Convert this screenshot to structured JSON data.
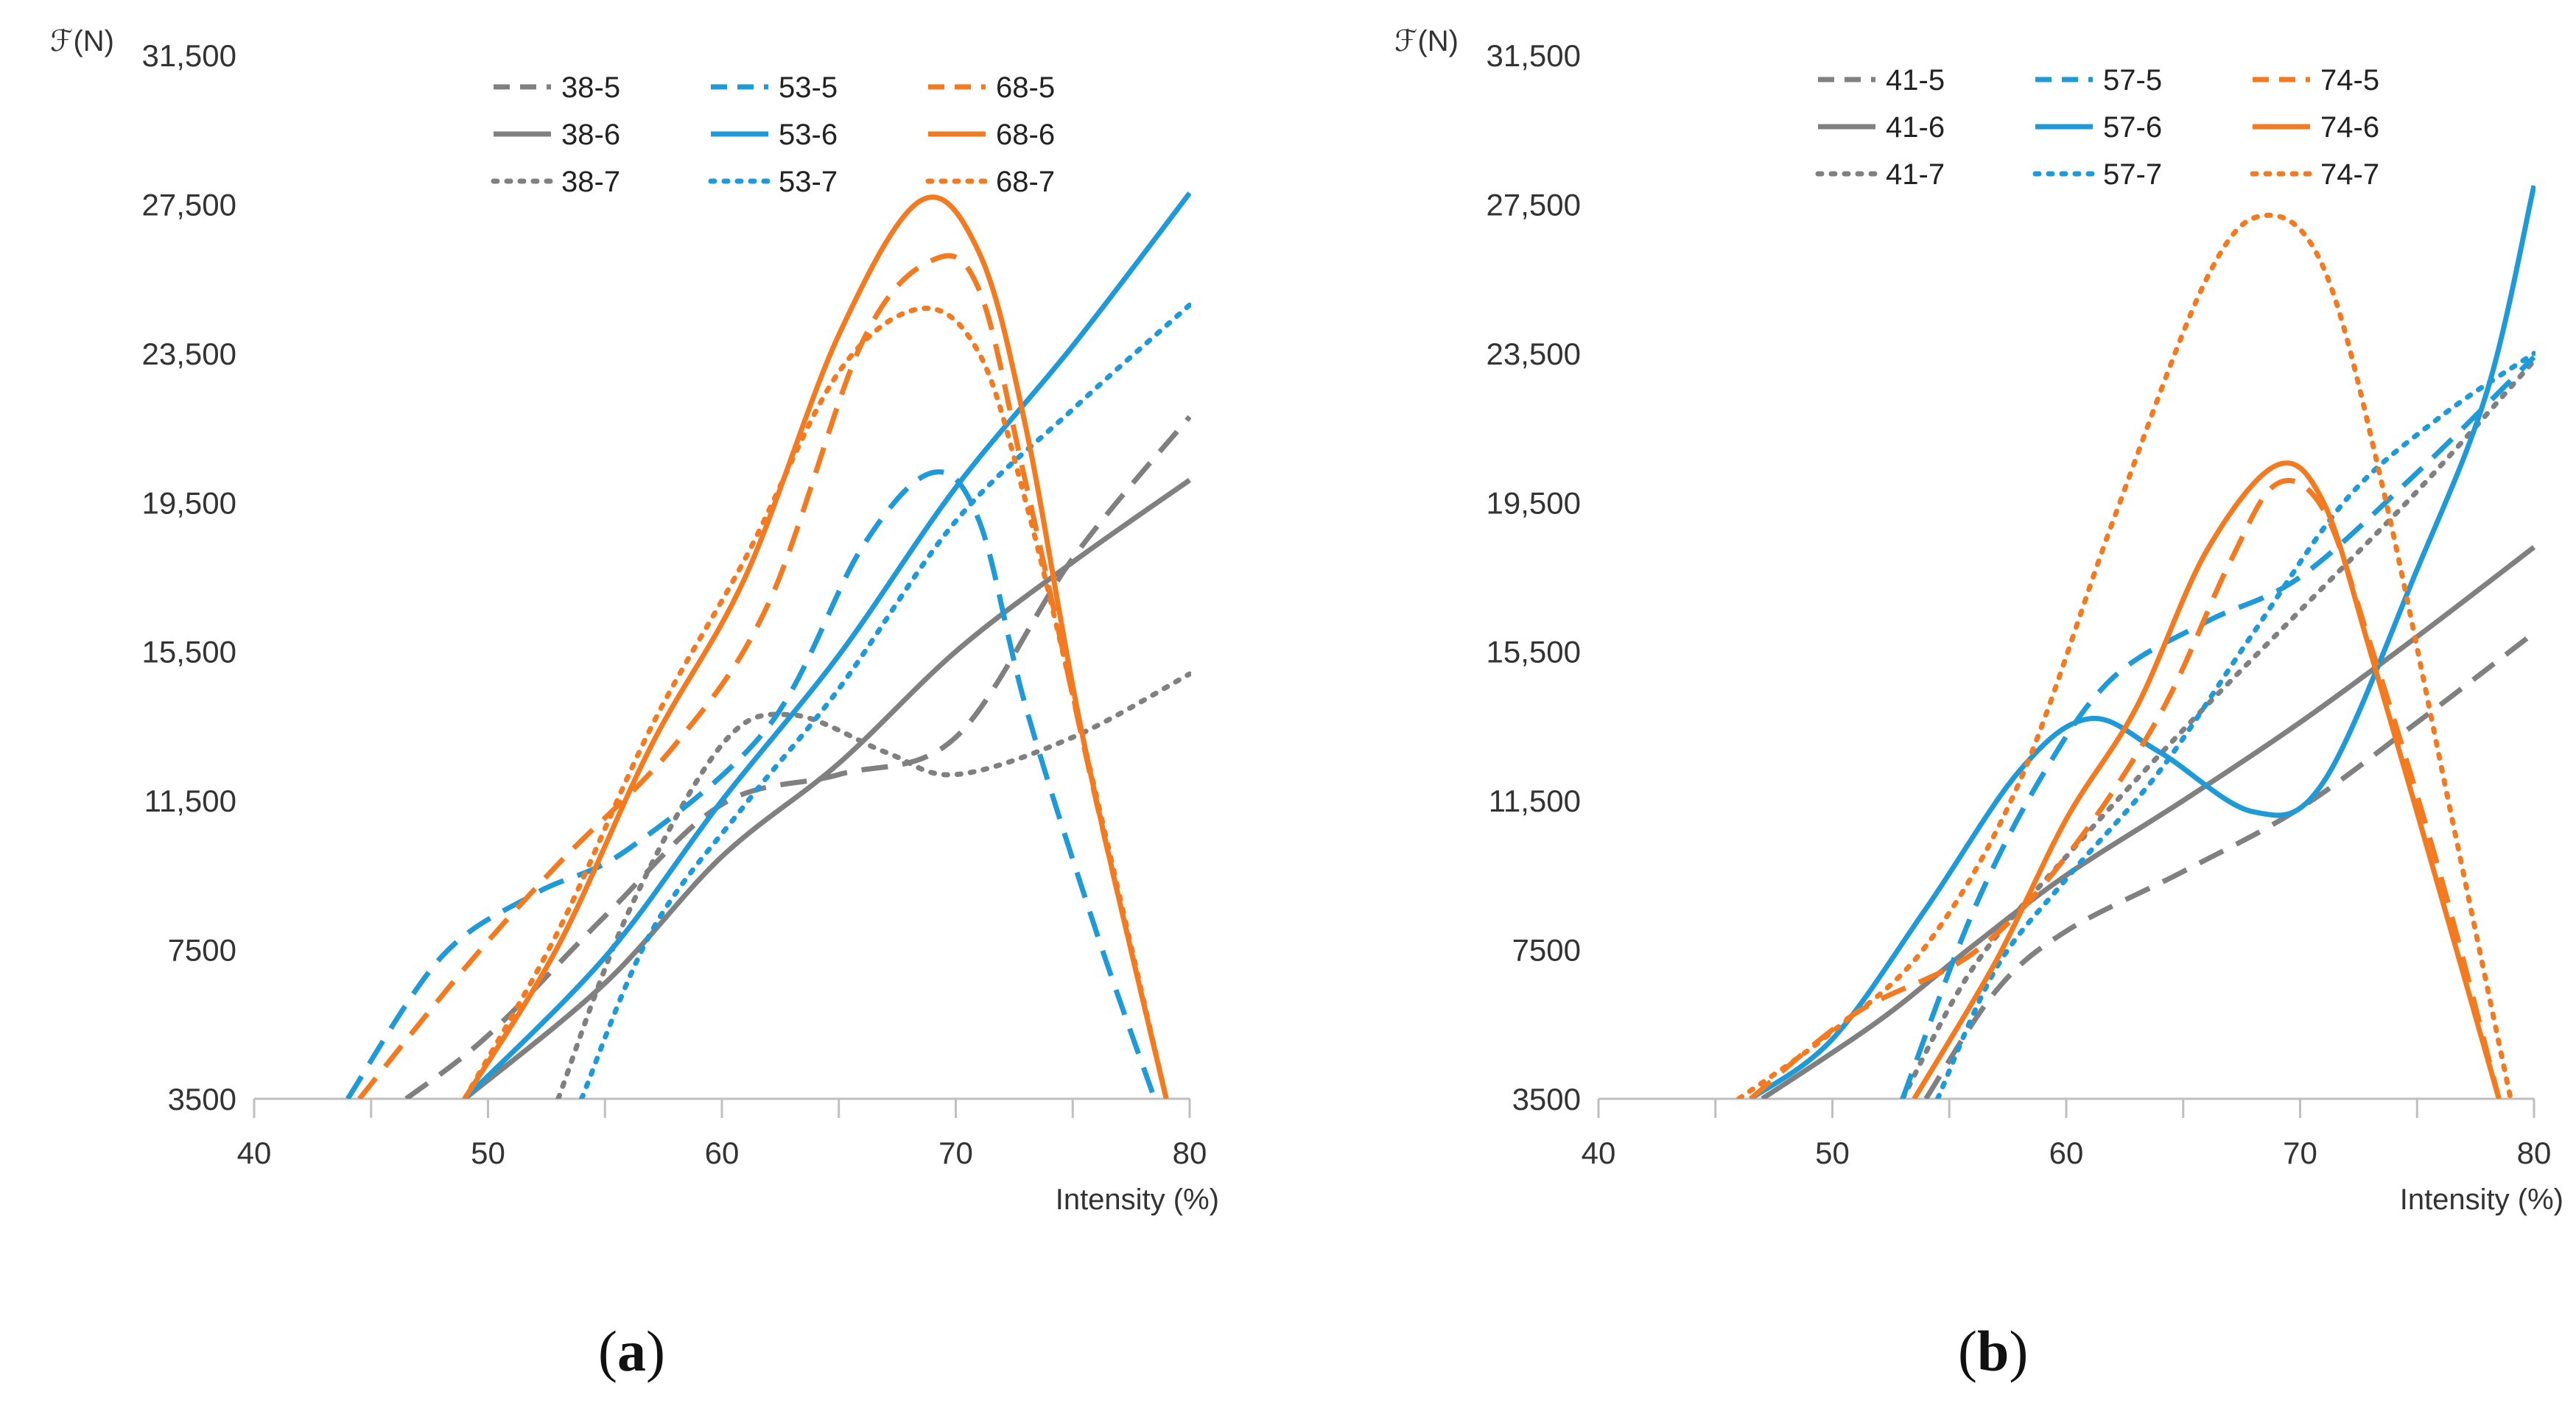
{
  "captions": {
    "a": "a",
    "b": "b"
  },
  "chart_data": [
    {
      "id": "a",
      "type": "line",
      "title": "",
      "xlabel": "Intensity (%)",
      "ylabel": "ℱ(N)",
      "xlim": [
        40,
        80
      ],
      "ylim": [
        3500,
        31500
      ],
      "xticks": [
        40,
        50,
        60,
        70,
        80
      ],
      "yticks": [
        3500,
        7500,
        11500,
        15500,
        19500,
        23500,
        27500,
        31500
      ],
      "ytick_labels": [
        "3500",
        "7500",
        "11,500",
        "15,500",
        "19,500",
        "23,500",
        "27,500",
        "31,500"
      ],
      "legend_position": "top-center",
      "series": [
        {
          "name": "38-5",
          "color": "#808080",
          "style": "dashed",
          "points": [
            [
              46.5,
              3500
            ],
            [
              50,
              5200
            ],
            [
              55,
              8400
            ],
            [
              60,
              11400
            ],
            [
              65,
              12200
            ],
            [
              70,
              13200
            ],
            [
              75,
              18000
            ],
            [
              80,
              21800
            ]
          ]
        },
        {
          "name": "38-6",
          "color": "#808080",
          "style": "solid",
          "points": [
            [
              49,
              3500
            ],
            [
              55,
              6600
            ],
            [
              60,
              10000
            ],
            [
              65,
              12500
            ],
            [
              70,
              15500
            ],
            [
              75,
              17900
            ],
            [
              80,
              20100
            ]
          ]
        },
        {
          "name": "38-7",
          "color": "#808080",
          "style": "dotted",
          "points": [
            [
              53,
              3500
            ],
            [
              56,
              8500
            ],
            [
              60,
              13000
            ],
            [
              63,
              13800
            ],
            [
              67,
              12800
            ],
            [
              70,
              12200
            ],
            [
              75,
              13200
            ],
            [
              80,
              14900
            ]
          ]
        },
        {
          "name": "53-5",
          "color": "#1f9ad8",
          "style": "dashed",
          "points": [
            [
              44,
              3500
            ],
            [
              48,
              7300
            ],
            [
              52,
              9000
            ],
            [
              56,
              10200
            ],
            [
              62,
              13500
            ],
            [
              66,
              18300
            ],
            [
              69,
              20300
            ],
            [
              71,
              19000
            ],
            [
              73,
              14000
            ],
            [
              76,
              8000
            ],
            [
              78.5,
              3500
            ]
          ]
        },
        {
          "name": "53-6",
          "color": "#1f9ad8",
          "style": "solid",
          "points": [
            [
              49,
              3500
            ],
            [
              55,
              7300
            ],
            [
              60,
              11500
            ],
            [
              65,
              15400
            ],
            [
              70,
              19900
            ],
            [
              75,
              23700
            ],
            [
              80,
              27800
            ]
          ]
        },
        {
          "name": "53-7",
          "color": "#1f9ad8",
          "style": "dotted",
          "points": [
            [
              54,
              3500
            ],
            [
              57,
              8000
            ],
            [
              61,
              11400
            ],
            [
              65,
              14500
            ],
            [
              70,
              19000
            ],
            [
              75,
              22000
            ],
            [
              80,
              24800
            ]
          ]
        },
        {
          "name": "68-5",
          "color": "#f47a20",
          "style": "dashed",
          "points": [
            [
              44.5,
              3500
            ],
            [
              49,
              7000
            ],
            [
              53,
              9800
            ],
            [
              58,
              13000
            ],
            [
              62,
              16800
            ],
            [
              66,
              23800
            ],
            [
              69,
              26000
            ],
            [
              71,
              25200
            ],
            [
              73,
              20000
            ],
            [
              76,
              11500
            ],
            [
              79,
              3500
            ]
          ]
        },
        {
          "name": "68-6",
          "color": "#f47a20",
          "style": "solid",
          "points": [
            [
              49,
              3500
            ],
            [
              53,
              7600
            ],
            [
              57,
              13000
            ],
            [
              61,
              17500
            ],
            [
              65,
              24000
            ],
            [
              68.5,
              27600
            ],
            [
              71,
              26200
            ],
            [
              73,
              21500
            ],
            [
              75.5,
              13000
            ],
            [
              79,
              3500
            ]
          ]
        },
        {
          "name": "68-7",
          "color": "#f47a20",
          "style": "dotted",
          "points": [
            [
              49,
              3500
            ],
            [
              53,
              8000
            ],
            [
              57,
              13500
            ],
            [
              61,
              18000
            ],
            [
              65,
              23000
            ],
            [
              68.5,
              24700
            ],
            [
              71,
              23500
            ],
            [
              73,
              19500
            ],
            [
              75.5,
              13000
            ],
            [
              79,
              3500
            ]
          ]
        }
      ]
    },
    {
      "id": "b",
      "type": "line",
      "title": "",
      "xlabel": "Intensity (%)",
      "ylabel": "ℱ(N)",
      "xlim": [
        40,
        80
      ],
      "ylim": [
        3500,
        31500
      ],
      "xticks": [
        40,
        50,
        60,
        70,
        80
      ],
      "yticks": [
        3500,
        7500,
        11500,
        15500,
        19500,
        23500,
        27500,
        31500
      ],
      "ytick_labels": [
        "3500",
        "7500",
        "11,500",
        "15,500",
        "19,500",
        "23,500",
        "27,500",
        "31,500"
      ],
      "legend_position": "top-center",
      "series": [
        {
          "name": "41-5",
          "color": "#808080",
          "style": "dashed",
          "points": [
            [
              54,
              3500
            ],
            [
              57,
              6400
            ],
            [
              60,
              8000
            ],
            [
              65,
              9600
            ],
            [
              70,
              11300
            ],
            [
              75,
              13600
            ],
            [
              80,
              16000
            ]
          ]
        },
        {
          "name": "41-6",
          "color": "#808080",
          "style": "solid",
          "points": [
            [
              47,
              3500
            ],
            [
              52,
              5600
            ],
            [
              56,
              7600
            ],
            [
              60,
              9500
            ],
            [
              65,
              11500
            ],
            [
              70,
              13600
            ],
            [
              75,
              15900
            ],
            [
              80,
              18300
            ]
          ]
        },
        {
          "name": "41-7",
          "color": "#808080",
          "style": "dotted",
          "points": [
            [
              53,
              3500
            ],
            [
              56,
              7000
            ],
            [
              60,
              10000
            ],
            [
              65,
              13400
            ],
            [
              70,
              16600
            ],
            [
              75,
              19800
            ],
            [
              80,
              23300
            ]
          ]
        },
        {
          "name": "57-5",
          "color": "#1f9ad8",
          "style": "dashed",
          "points": [
            [
              53,
              3500
            ],
            [
              56,
              8500
            ],
            [
              59,
              12200
            ],
            [
              62,
              14800
            ],
            [
              66,
              16300
            ],
            [
              70,
              17500
            ],
            [
              75,
              20300
            ],
            [
              80,
              23400
            ]
          ]
        },
        {
          "name": "57-6",
          "color": "#1f9ad8",
          "style": "solid",
          "points": [
            [
              46.5,
              3500
            ],
            [
              50,
              5100
            ],
            [
              54,
              8600
            ],
            [
              58,
              12300
            ],
            [
              61,
              13700
            ],
            [
              64,
              12800
            ],
            [
              68,
              11200
            ],
            [
              71,
              12000
            ],
            [
              75,
              17700
            ],
            [
              78,
              22500
            ],
            [
              80,
              28000
            ]
          ]
        },
        {
          "name": "57-7",
          "color": "#1f9ad8",
          "style": "dotted",
          "points": [
            [
              54.5,
              3500
            ],
            [
              57,
              7000
            ],
            [
              60,
              9400
            ],
            [
              64,
              12300
            ],
            [
              68,
              16000
            ],
            [
              72,
              19600
            ],
            [
              76,
              21800
            ],
            [
              80,
              23500
            ]
          ]
        },
        {
          "name": "74-5",
          "color": "#f47a20",
          "style": "dashed",
          "points": [
            [
              46.5,
              3500
            ],
            [
              51,
              5800
            ],
            [
              56,
              7400
            ],
            [
              60,
              10000
            ],
            [
              64,
              13800
            ],
            [
              67,
              17900
            ],
            [
              69,
              20000
            ],
            [
              71,
              19300
            ],
            [
              73,
              15700
            ],
            [
              76,
              9500
            ],
            [
              78.5,
              3500
            ]
          ]
        },
        {
          "name": "74-6",
          "color": "#f47a20",
          "style": "solid",
          "points": [
            [
              53.5,
              3500
            ],
            [
              57,
              7200
            ],
            [
              60,
              11000
            ],
            [
              63,
              14000
            ],
            [
              66,
              18200
            ],
            [
              69,
              20500
            ],
            [
              71,
              19500
            ],
            [
              73,
              15500
            ],
            [
              76,
              9000
            ],
            [
              78.5,
              3500
            ]
          ]
        },
        {
          "name": "74-7",
          "color": "#f47a20",
          "style": "dotted",
          "points": [
            [
              46,
              3500
            ],
            [
              50,
              5300
            ],
            [
              54,
              7600
            ],
            [
              58,
              12000
            ],
            [
              62,
              19000
            ],
            [
              66,
              25500
            ],
            [
              68.5,
              27200
            ],
            [
              71,
              25800
            ],
            [
              73.5,
              20000
            ],
            [
              76.5,
              11000
            ],
            [
              79,
              3500
            ]
          ]
        }
      ]
    }
  ]
}
